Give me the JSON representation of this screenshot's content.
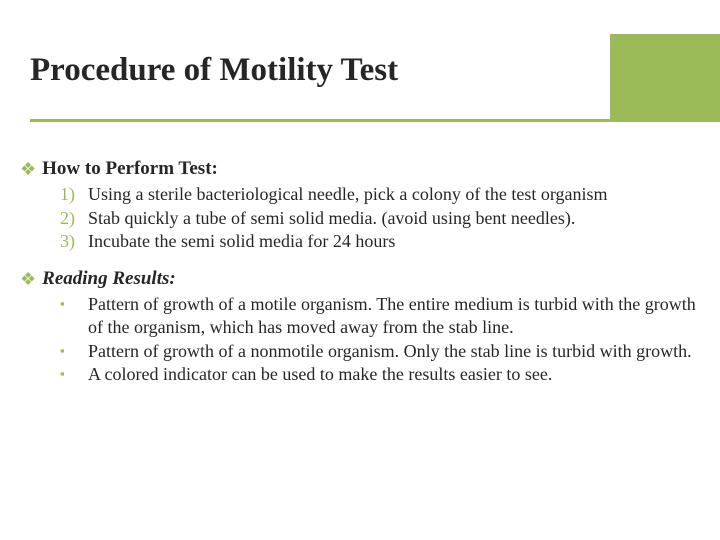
{
  "colors": {
    "accent": "#9bbb59",
    "text": "#262626",
    "background": "#ffffff"
  },
  "title": "Procedure of Motility Test",
  "section1": {
    "bullet": "❖",
    "label": "How to Perform Test:",
    "items": [
      {
        "num": "1)",
        "text": "Using a sterile bacteriological needle, pick a colony of the test organism"
      },
      {
        "num": "2)",
        "text": "Stab quickly a tube of semi solid media. (avoid using bent needles)."
      },
      {
        "num": "3)",
        "text": "Incubate the semi solid media for 24 hours"
      }
    ]
  },
  "section2": {
    "bullet": "❖",
    "label": "Reading Results:",
    "items": [
      {
        "bullet": "▪",
        "text": "Pattern of growth of a motile organism. The entire medium is turbid with the growth of the organism, which has moved away from the stab line."
      },
      {
        "bullet": "▪",
        "text": "Pattern of growth of a nonmotile organism. Only the stab line is turbid with growth."
      },
      {
        "bullet": "▪",
        "text": "A colored indicator can be used to make the results easier to see."
      }
    ]
  }
}
